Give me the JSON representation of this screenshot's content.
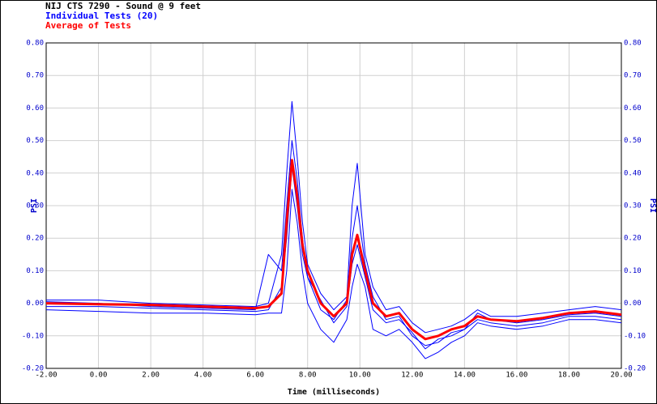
{
  "chart_data": {
    "type": "line",
    "title": "NIJ CTS 7290 - Sound @ 9 feet",
    "xlabel": "Time (milliseconds)",
    "ylabel": "PSI",
    "x": [
      -2,
      0,
      2,
      4,
      6,
      6.5,
      7,
      7.2,
      7.4,
      7.6,
      7.8,
      8,
      8.5,
      9,
      9.5,
      9.7,
      9.9,
      10.2,
      10.5,
      11,
      11.5,
      12,
      12.5,
      13,
      13.5,
      14,
      14.5,
      15,
      16,
      17,
      18,
      19,
      20
    ],
    "series": [
      {
        "name": "Individual Tests (20)",
        "color": "#0000ff",
        "values": [
          0.01,
          0.01,
          0,
          -0.005,
          -0.01,
          0.0,
          0.15,
          0.4,
          0.62,
          0.45,
          0.25,
          0.12,
          0.03,
          -0.02,
          0.02,
          0.3,
          0.43,
          0.15,
          0.05,
          -0.02,
          -0.01,
          -0.06,
          -0.09,
          -0.08,
          -0.07,
          -0.05,
          -0.02,
          -0.04,
          -0.04,
          -0.03,
          -0.02,
          -0.01,
          -0.02
        ]
      },
      {
        "color": "#0000ff",
        "values": [
          -0.02,
          -0.025,
          -0.03,
          -0.03,
          -0.035,
          -0.03,
          -0.03,
          0.1,
          0.35,
          0.25,
          0.1,
          0.0,
          -0.08,
          -0.12,
          -0.05,
          0.05,
          0.12,
          0.05,
          -0.08,
          -0.1,
          -0.08,
          -0.12,
          -0.17,
          -0.15,
          -0.12,
          -0.1,
          -0.06,
          -0.07,
          -0.08,
          -0.07,
          -0.05,
          -0.05,
          -0.06
        ]
      },
      {
        "color": "#0000ff",
        "values": [
          0.005,
          0,
          -0.01,
          -0.015,
          -0.02,
          0.15,
          0.1,
          0.3,
          0.5,
          0.38,
          0.2,
          0.08,
          -0.02,
          -0.05,
          0.01,
          0.2,
          0.3,
          0.12,
          0.02,
          -0.05,
          -0.04,
          -0.1,
          -0.13,
          -0.12,
          -0.09,
          -0.08,
          -0.03,
          -0.05,
          -0.06,
          -0.05,
          -0.035,
          -0.03,
          -0.04
        ]
      },
      {
        "color": "#0000ff",
        "values": [
          -0.01,
          -0.01,
          -0.015,
          -0.02,
          -0.025,
          -0.02,
          0.05,
          0.2,
          0.42,
          0.3,
          0.15,
          0.08,
          0.01,
          -0.06,
          -0.01,
          0.12,
          0.18,
          0.08,
          -0.02,
          -0.06,
          -0.05,
          -0.09,
          -0.14,
          -0.11,
          -0.1,
          -0.08,
          -0.05,
          -0.06,
          -0.07,
          -0.06,
          -0.04,
          -0.04,
          -0.05
        ]
      },
      {
        "name": "Average of Tests",
        "color": "#ff0000",
        "values": [
          0,
          -0.003,
          -0.005,
          -0.01,
          -0.015,
          -0.01,
          0.03,
          0.25,
          0.44,
          0.33,
          0.18,
          0.1,
          0.0,
          -0.04,
          0.0,
          0.15,
          0.21,
          0.1,
          0.0,
          -0.04,
          -0.03,
          -0.08,
          -0.11,
          -0.1,
          -0.08,
          -0.07,
          -0.04,
          -0.05,
          -0.055,
          -0.045,
          -0.03,
          -0.025,
          -0.035
        ]
      }
    ],
    "xlim": [
      -2,
      20
    ],
    "xticks": [
      {
        "value": -2,
        "label": "-2.00"
      },
      {
        "value": 0,
        "label": "0.00"
      },
      {
        "value": 2,
        "label": "2.00"
      },
      {
        "value": 4,
        "label": "4.00"
      },
      {
        "value": 6,
        "label": "6.00"
      },
      {
        "value": 8,
        "label": "8.00"
      },
      {
        "value": 10,
        "label": "10.00"
      },
      {
        "value": 12,
        "label": "12.00"
      },
      {
        "value": 14,
        "label": "14.00"
      },
      {
        "value": 16,
        "label": "16.00"
      },
      {
        "value": 18,
        "label": "18.00"
      },
      {
        "value": 20,
        "label": "20.00"
      }
    ],
    "ylim": [
      -0.2,
      0.8
    ],
    "yticks": [
      {
        "value": -0.2,
        "label": "-0.20"
      },
      {
        "value": -0.1,
        "label": "-0.10"
      },
      {
        "value": 0,
        "label": "0.00"
      },
      {
        "value": 0.1,
        "label": "0.10"
      },
      {
        "value": 0.2,
        "label": "0.20"
      },
      {
        "value": 0.3,
        "label": "0.30"
      },
      {
        "value": 0.4,
        "label": "0.40"
      },
      {
        "value": 0.5,
        "label": "0.50"
      },
      {
        "value": 0.6,
        "label": "0.60"
      },
      {
        "value": 0.7,
        "label": "0.70"
      },
      {
        "value": 0.8,
        "label": "0.80"
      }
    ],
    "grid": true
  }
}
